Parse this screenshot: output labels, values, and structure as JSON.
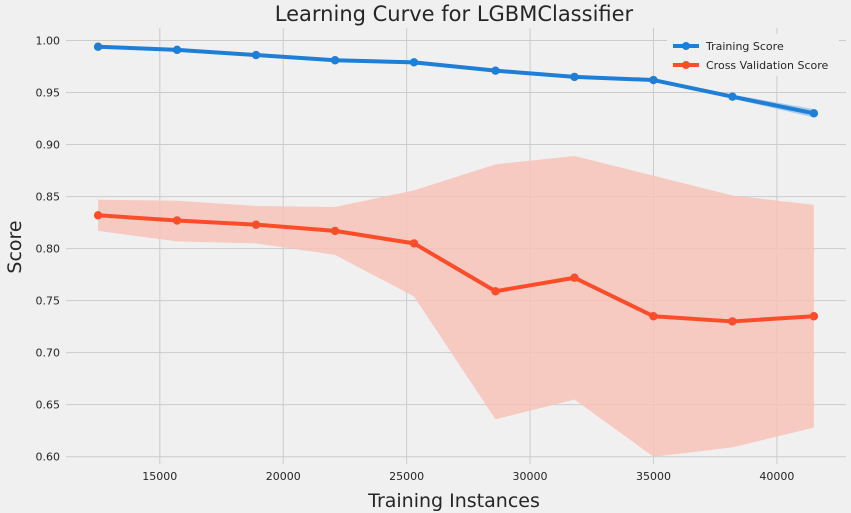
{
  "chart_data": {
    "type": "line",
    "title": "Learning Curve for LGBMClassifier",
    "xlabel": "Training Instances",
    "ylabel": "Score",
    "xlim": [
      11200,
      42800
    ],
    "ylim": [
      0.593,
      1.012
    ],
    "xticks": [
      15000,
      20000,
      25000,
      30000,
      35000,
      40000
    ],
    "xtick_labels": [
      "15000",
      "20000",
      "25000",
      "30000",
      "35000",
      "40000"
    ],
    "yticks": [
      0.6,
      0.65,
      0.7,
      0.75,
      0.8,
      0.85,
      0.9,
      0.95,
      1.0
    ],
    "ytick_labels": [
      "0.60",
      "0.65",
      "0.70",
      "0.75",
      "0.80",
      "0.85",
      "0.90",
      "0.95",
      "1.00"
    ],
    "grid": true,
    "legend_position": "top-right",
    "x": [
      12500,
      15700,
      18900,
      22100,
      25300,
      28600,
      31800,
      35000,
      38200,
      41500
    ],
    "series": [
      {
        "name": "Training Score",
        "color": "#1f7ed6",
        "band_color": "#9ec5ea",
        "values": [
          0.994,
          0.991,
          0.986,
          0.981,
          0.979,
          0.971,
          0.965,
          0.962,
          0.946,
          0.93
        ],
        "lower": [
          0.993,
          0.99,
          0.985,
          0.98,
          0.977,
          0.97,
          0.964,
          0.961,
          0.944,
          0.926
        ],
        "upper": [
          0.995,
          0.992,
          0.987,
          0.982,
          0.981,
          0.972,
          0.966,
          0.963,
          0.948,
          0.934
        ]
      },
      {
        "name": "Cross Validation Score",
        "color": "#fc4d2a",
        "band_color": "#f7c2b8",
        "values": [
          0.832,
          0.827,
          0.823,
          0.817,
          0.805,
          0.759,
          0.772,
          0.735,
          0.73,
          0.735
        ],
        "lower": [
          0.817,
          0.807,
          0.805,
          0.794,
          0.754,
          0.636,
          0.655,
          0.6,
          0.609,
          0.628
        ],
        "upper": [
          0.847,
          0.846,
          0.841,
          0.84,
          0.856,
          0.881,
          0.889,
          0.87,
          0.851,
          0.842
        ]
      }
    ]
  }
}
